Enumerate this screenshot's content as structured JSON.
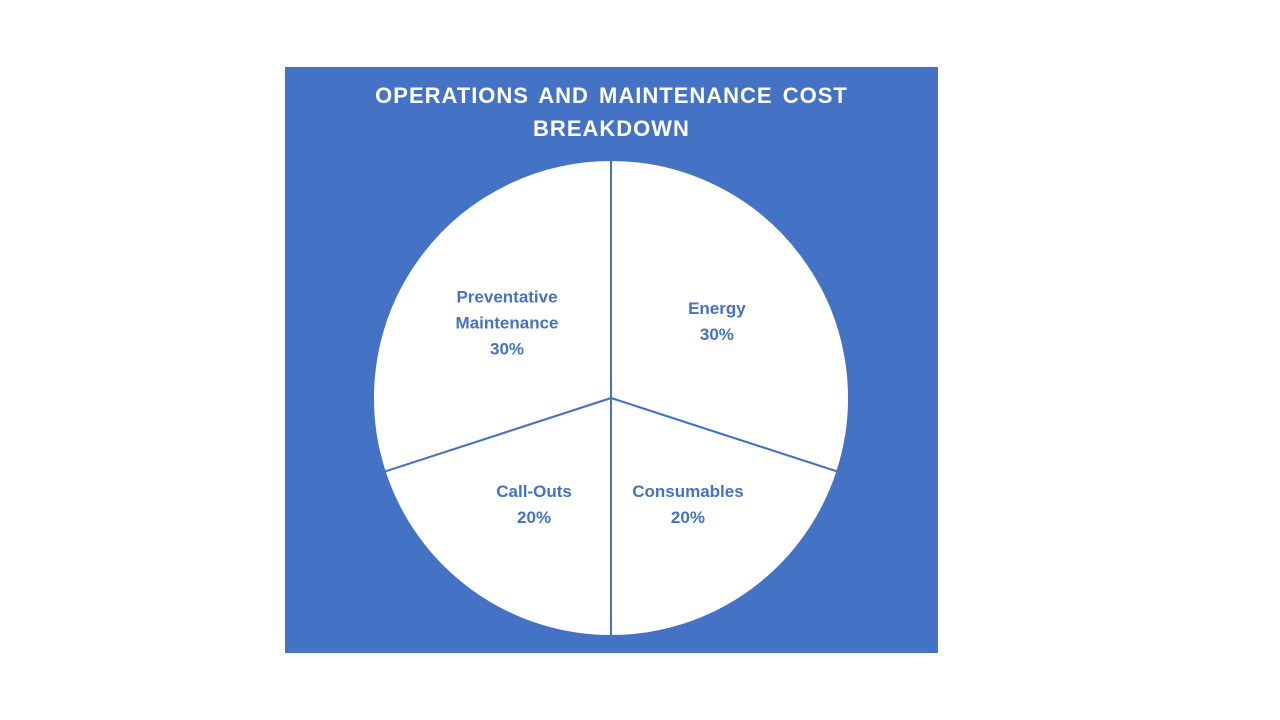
{
  "chart_data": {
    "type": "pie",
    "title": "OPERATIONS AND MAINTENANCE COST BREAKDOWN",
    "slices": [
      {
        "label": "Energy",
        "value": 30,
        "display": "30%"
      },
      {
        "label": "Consumables",
        "value": 20,
        "display": "20%"
      },
      {
        "label": "Call-Outs",
        "value": 20,
        "display": "20%"
      },
      {
        "label": "Preventative Maintenance",
        "value": 30,
        "display": "30%"
      }
    ],
    "start_angle_deg": 0,
    "direction": "clockwise",
    "colors": {
      "background": "#4472c4",
      "slice_fill": "#ffffff",
      "slice_border": "#4472c4",
      "label": "#4472c4",
      "title": "#ffffff"
    }
  }
}
